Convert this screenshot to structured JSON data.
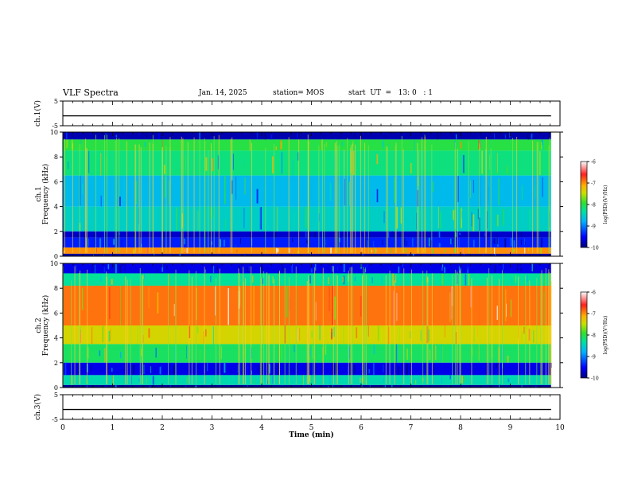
{
  "header": {
    "title": "VLF Spectra",
    "date": "Jan. 14, 2025",
    "station": "station= MOS",
    "start": "start  UT  =   13: 0   : 1"
  },
  "chart_data": [
    {
      "type": "line",
      "panel": "ch1-waveform",
      "ylabel": "ch.1(V)",
      "ylim": [
        -5,
        5
      ],
      "yticks": [
        "5",
        "-5"
      ],
      "xlim": [
        0,
        10
      ],
      "series": [
        {
          "x": [
            0,
            9.82
          ],
          "y": [
            -1.0,
            -1.0
          ]
        }
      ]
    },
    {
      "type": "heatmap",
      "panel": "ch1-spectrogram",
      "ylabel_top": "ch.1",
      "ylabel": "Frequency (kHz)",
      "ylim": [
        0,
        10
      ],
      "yticks": [
        "0",
        "2",
        "4",
        "6",
        "8",
        "10"
      ],
      "xlim": [
        0,
        10
      ],
      "data_xmax": 9.82,
      "colorbar": {
        "label": "log(PSD)(V²/Hz)",
        "range": [
          -10,
          -6
        ],
        "ticks": [
          "-6",
          "-7",
          "-8",
          "-9",
          "-10"
        ]
      },
      "bands": [
        {
          "f0": 9.4,
          "f1": 10.0,
          "level": -9.8
        },
        {
          "f0": 8.5,
          "f1": 9.4,
          "level": -8.0
        },
        {
          "f0": 6.5,
          "f1": 8.5,
          "level": -8.2
        },
        {
          "f0": 4.0,
          "f1": 6.5,
          "level": -8.7
        },
        {
          "f0": 2.0,
          "f1": 4.0,
          "level": -8.5
        },
        {
          "f0": 1.5,
          "f1": 2.0,
          "level": -9.7
        },
        {
          "f0": 0.7,
          "f1": 1.5,
          "level": -9.4
        },
        {
          "f0": 0.2,
          "f1": 0.7,
          "level": -7.0
        },
        {
          "f0": 0.0,
          "f1": 0.2,
          "level": -9.9
        }
      ]
    },
    {
      "type": "heatmap",
      "panel": "ch2-spectrogram",
      "ylabel_top": "ch.2",
      "ylabel": "Frequency (kHz)",
      "ylim": [
        0,
        10
      ],
      "yticks": [
        "0",
        "2",
        "4",
        "6",
        "8",
        "10"
      ],
      "xlim": [
        0,
        10
      ],
      "data_xmax": 9.82,
      "colorbar": {
        "label": "log(PSD)(V²/Hz)",
        "range": [
          -10,
          -6
        ],
        "ticks": [
          "-6",
          "-7",
          "-8",
          "-9",
          "-10"
        ]
      },
      "bands": [
        {
          "f0": 9.2,
          "f1": 10.0,
          "level": -9.6
        },
        {
          "f0": 8.2,
          "f1": 9.2,
          "level": -8.3
        },
        {
          "f0": 5.0,
          "f1": 8.2,
          "level": -6.9
        },
        {
          "f0": 3.5,
          "f1": 5.0,
          "level": -7.4
        },
        {
          "f0": 2.0,
          "f1": 3.5,
          "level": -8.1
        },
        {
          "f0": 1.0,
          "f1": 2.0,
          "level": -9.6
        },
        {
          "f0": 0.2,
          "f1": 1.0,
          "level": -8.4
        },
        {
          "f0": 0.0,
          "f1": 0.2,
          "level": -9.9
        }
      ]
    },
    {
      "type": "line",
      "panel": "ch3-waveform",
      "ylabel": "ch.3(V)",
      "ylim": [
        -5,
        5
      ],
      "yticks": [
        "5",
        "-5"
      ],
      "xlim": [
        0,
        10
      ],
      "xlabel": "Time (min)",
      "xticks": [
        "0",
        "1",
        "2",
        "3",
        "4",
        "5",
        "6",
        "7",
        "8",
        "9",
        "10"
      ],
      "series": [
        {
          "x": [
            0,
            9.82
          ],
          "y": [
            -1.0,
            -1.0
          ]
        }
      ]
    }
  ],
  "colors": {
    "frame": "#000000",
    "colormap": [
      "#00007a",
      "#0000ff",
      "#00b0ff",
      "#00e0a0",
      "#30e030",
      "#c8e000",
      "#ffb000",
      "#ff2020",
      "#ffffff"
    ]
  }
}
